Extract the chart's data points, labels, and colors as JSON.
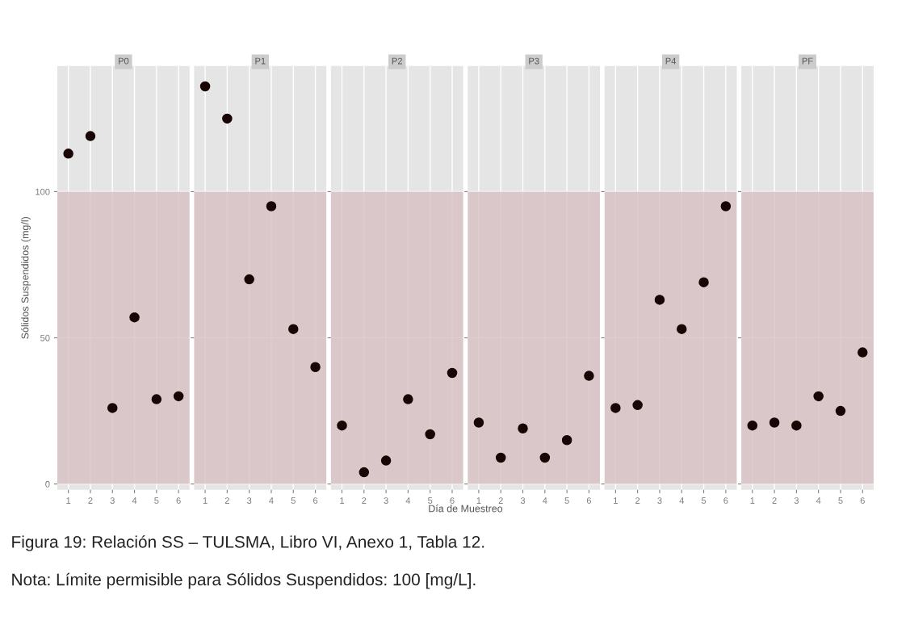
{
  "chart_data": [
    {
      "type": "scatter",
      "title": "P0",
      "ylabel": "Sólidos Suspendidos (mg/l)",
      "x": [
        1,
        2,
        3,
        4,
        5,
        6
      ],
      "xlim": [
        0.5,
        6.5
      ],
      "xticks": [
        1,
        2,
        3,
        4,
        5,
        6
      ],
      "ylim": [
        -2,
        143
      ],
      "yticks": [
        0,
        50,
        100
      ],
      "series": [
        {
          "color": "#1a0505",
          "values": [
            113,
            119,
            26,
            57,
            29,
            30
          ]
        }
      ],
      "bands": [
        {
          "axis": "y",
          "from": 0,
          "to": 100,
          "color": "#d4bcc0"
        }
      ],
      "grid": true,
      "marker": "circle",
      "annotations": [
        "Figura 19: Relación SS – TULSMA, Libro VI, Anexo 1, Tabla 12.",
        "Nota: Límite permisible para Sólidos Suspendidos: 100 [mg/L]."
      ]
    },
    {
      "type": "scatter",
      "title": "P1",
      "x": [
        1,
        2,
        3,
        4,
        5,
        6
      ],
      "xlim": [
        0.5,
        6.5
      ],
      "xticks": [
        1,
        2,
        3,
        4,
        5,
        6
      ],
      "ylim": [
        -2,
        143
      ],
      "yticks": [
        0,
        50,
        100
      ],
      "tick_labels": "x",
      "series": [
        {
          "color": "#1a0505",
          "values": [
            136,
            125,
            70,
            95,
            53,
            40
          ]
        }
      ],
      "bands": [
        {
          "axis": "y",
          "from": 0,
          "to": 100,
          "color": "#d4bcc0"
        }
      ],
      "grid": true,
      "marker": "circle"
    },
    {
      "type": "scatter",
      "title": "P2",
      "x": [
        1,
        2,
        3,
        4,
        5,
        6
      ],
      "xlim": [
        0.5,
        6.5
      ],
      "xticks": [
        1,
        2,
        3,
        4,
        5,
        6
      ],
      "ylim": [
        -2,
        143
      ],
      "yticks": [
        0,
        50,
        100
      ],
      "tick_labels": "x",
      "series": [
        {
          "color": "#1a0505",
          "values": [
            20,
            4,
            8,
            29,
            17,
            38
          ]
        }
      ],
      "bands": [
        {
          "axis": "y",
          "from": 0,
          "to": 100,
          "color": "#d4bcc0"
        }
      ],
      "grid": true,
      "marker": "circle"
    },
    {
      "type": "scatter",
      "title": "P3",
      "xlabel": "Día de Muestreo",
      "x": [
        1,
        2,
        3,
        4,
        5,
        6
      ],
      "xlim": [
        0.5,
        6.5
      ],
      "xticks": [
        1,
        2,
        3,
        4,
        5,
        6
      ],
      "ylim": [
        -2,
        143
      ],
      "yticks": [
        0,
        50,
        100
      ],
      "tick_labels": "x",
      "series": [
        {
          "color": "#1a0505",
          "values": [
            21,
            9,
            19,
            9,
            15,
            37
          ]
        }
      ],
      "bands": [
        {
          "axis": "y",
          "from": 0,
          "to": 100,
          "color": "#d4bcc0"
        }
      ],
      "grid": true,
      "marker": "circle"
    },
    {
      "type": "scatter",
      "title": "P4",
      "x": [
        1,
        2,
        3,
        4,
        5,
        6
      ],
      "xlim": [
        0.5,
        6.5
      ],
      "xticks": [
        1,
        2,
        3,
        4,
        5,
        6
      ],
      "ylim": [
        -2,
        143
      ],
      "yticks": [
        0,
        50,
        100
      ],
      "tick_labels": "x",
      "series": [
        {
          "color": "#1a0505",
          "values": [
            26,
            27,
            63,
            53,
            69,
            95
          ]
        }
      ],
      "bands": [
        {
          "axis": "y",
          "from": 0,
          "to": 100,
          "color": "#d4bcc0"
        }
      ],
      "grid": true,
      "marker": "circle"
    },
    {
      "type": "scatter",
      "title": "PF",
      "x": [
        1,
        2,
        3,
        4,
        5,
        6
      ],
      "xlim": [
        0.5,
        6.5
      ],
      "xticks": [
        1,
        2,
        3,
        4,
        5,
        6
      ],
      "ylim": [
        -2,
        143
      ],
      "yticks": [
        0,
        50,
        100
      ],
      "tick_labels": "x",
      "series": [
        {
          "color": "#1a0505",
          "values": [
            20,
            21,
            20,
            30,
            25,
            45
          ]
        }
      ],
      "bands": [
        {
          "axis": "y",
          "from": 0,
          "to": 100,
          "color": "#d4bcc0"
        }
      ],
      "grid": true,
      "marker": "circle"
    }
  ]
}
